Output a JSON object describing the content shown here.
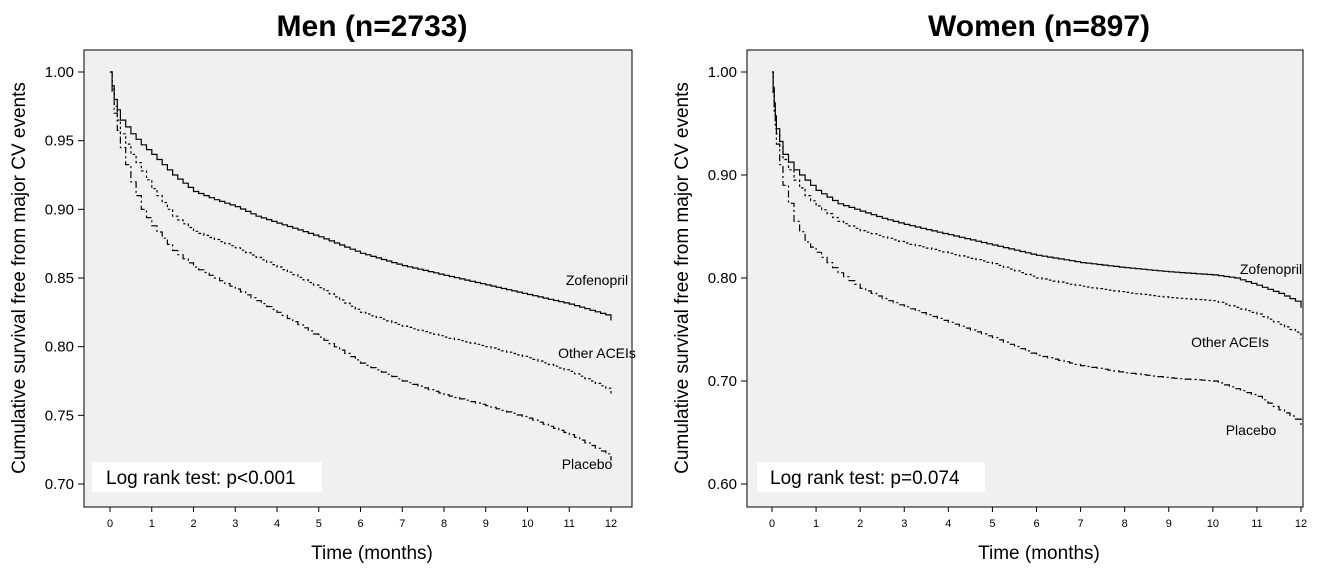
{
  "chart_data": [
    {
      "type": "line",
      "title": "Men (n=2733)",
      "xlabel": "Time (months)",
      "ylabel": "Cumulative survival free from major CV events",
      "xlim": [
        0,
        12
      ],
      "ylim": [
        0.7,
        1.0
      ],
      "xticks": [
        "0",
        "1",
        "2",
        "3",
        "4",
        "5",
        "6",
        "7",
        "8",
        "9",
        "10",
        "11",
        "12"
      ],
      "yticks": [
        "0.70",
        "0.75",
        "0.80",
        "0.85",
        "0.90",
        "0.95",
        "1.00"
      ],
      "grid": false,
      "annotation": "Log rank test: p<0.001",
      "series": [
        {
          "name": "Zofenopril",
          "line_style": "solid",
          "x": [
            0,
            0.1,
            0.25,
            0.5,
            0.75,
            1,
            1.5,
            2,
            2.5,
            3,
            3.5,
            4,
            5,
            6,
            7,
            8,
            9,
            10,
            11,
            12
          ],
          "y": [
            1.0,
            0.98,
            0.965,
            0.955,
            0.947,
            0.94,
            0.925,
            0.913,
            0.907,
            0.902,
            0.895,
            0.89,
            0.88,
            0.868,
            0.859,
            0.852,
            0.845,
            0.838,
            0.831,
            0.822
          ]
        },
        {
          "name": "Other ACEIs",
          "line_style": "dotted",
          "x": [
            0,
            0.1,
            0.25,
            0.5,
            0.75,
            1,
            1.5,
            2,
            2.5,
            3,
            4,
            5,
            6,
            7,
            8,
            9,
            10,
            11,
            12
          ],
          "y": [
            1.0,
            0.975,
            0.955,
            0.94,
            0.928,
            0.915,
            0.895,
            0.884,
            0.878,
            0.872,
            0.858,
            0.843,
            0.825,
            0.815,
            0.807,
            0.8,
            0.792,
            0.782,
            0.768
          ]
        },
        {
          "name": "Placebo",
          "line_style": "dashdot",
          "x": [
            0,
            0.1,
            0.25,
            0.5,
            0.75,
            1,
            1.5,
            2,
            2.5,
            3,
            4,
            5,
            6,
            7,
            8,
            9,
            10,
            11,
            12
          ],
          "y": [
            1.0,
            0.97,
            0.945,
            0.92,
            0.9,
            0.888,
            0.87,
            0.858,
            0.85,
            0.842,
            0.825,
            0.807,
            0.788,
            0.775,
            0.765,
            0.757,
            0.748,
            0.736,
            0.72
          ]
        }
      ]
    },
    {
      "type": "line",
      "title": "Women (n=897)",
      "xlabel": "Time (months)",
      "ylabel": "Cumulative survival free from major CV events",
      "xlim": [
        0,
        12
      ],
      "ylim": [
        0.6,
        1.0
      ],
      "xticks": [
        "0",
        "1",
        "2",
        "3",
        "4",
        "5",
        "6",
        "7",
        "8",
        "9",
        "10",
        "11",
        "12"
      ],
      "yticks": [
        "0.60",
        "0.70",
        "0.80",
        "0.90",
        "1.00"
      ],
      "grid": false,
      "annotation": "Log rank test: p=0.074",
      "series": [
        {
          "name": "Zofenopril",
          "line_style": "solid",
          "x": [
            0,
            0.05,
            0.1,
            0.25,
            0.5,
            0.75,
            1,
            1.5,
            2,
            2.5,
            3,
            4,
            5,
            6,
            7,
            8,
            9,
            10,
            10.5,
            11,
            11.5,
            12
          ],
          "y": [
            1.0,
            0.97,
            0.945,
            0.92,
            0.905,
            0.895,
            0.885,
            0.872,
            0.865,
            0.858,
            0.852,
            0.842,
            0.832,
            0.822,
            0.815,
            0.81,
            0.806,
            0.803,
            0.8,
            0.793,
            0.785,
            0.775
          ]
        },
        {
          "name": "Other ACEIs",
          "line_style": "dotted",
          "x": [
            0,
            0.05,
            0.1,
            0.25,
            0.5,
            0.75,
            1,
            1.5,
            2,
            2.5,
            3,
            4,
            5,
            6,
            7,
            8,
            9,
            10,
            11,
            11.5,
            12
          ],
          "y": [
            1.0,
            0.965,
            0.94,
            0.915,
            0.895,
            0.88,
            0.87,
            0.855,
            0.846,
            0.84,
            0.834,
            0.824,
            0.814,
            0.8,
            0.792,
            0.786,
            0.781,
            0.778,
            0.765,
            0.755,
            0.745
          ]
        },
        {
          "name": "Placebo",
          "line_style": "dashdot",
          "x": [
            0,
            0.05,
            0.1,
            0.25,
            0.5,
            0.75,
            1,
            1.5,
            2,
            2.5,
            3,
            4,
            5,
            6,
            7,
            8,
            9,
            10,
            11,
            11.5,
            12
          ],
          "y": [
            1.0,
            0.96,
            0.93,
            0.89,
            0.855,
            0.835,
            0.825,
            0.805,
            0.79,
            0.78,
            0.772,
            0.757,
            0.742,
            0.725,
            0.715,
            0.708,
            0.703,
            0.7,
            0.685,
            0.672,
            0.66
          ]
        }
      ]
    }
  ]
}
